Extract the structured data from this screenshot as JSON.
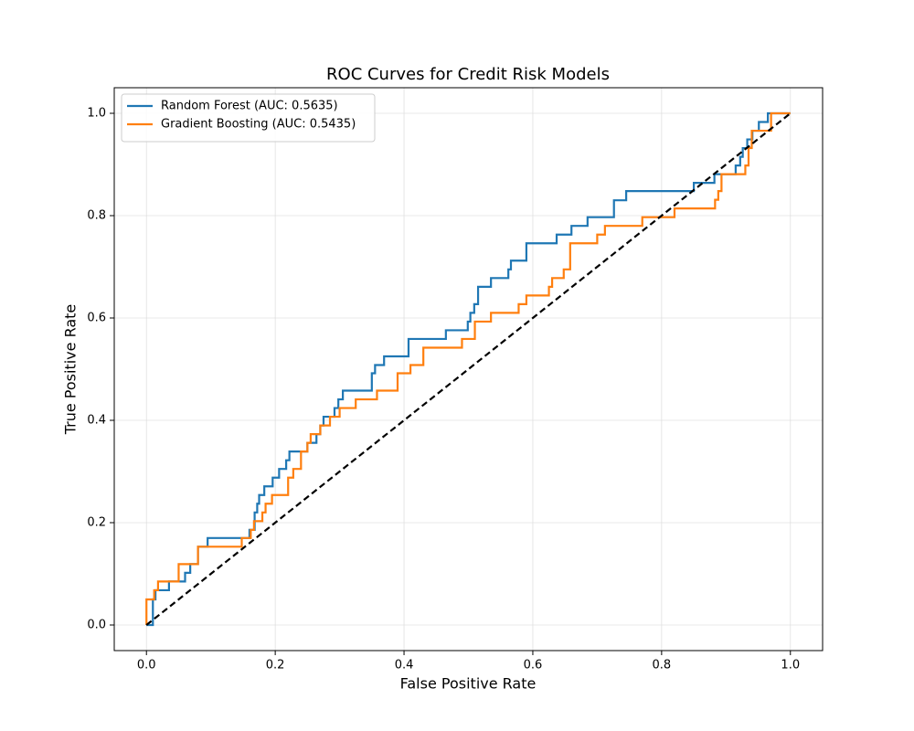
{
  "chart_data": {
    "type": "line",
    "title": "ROC Curves for Credit Risk Models",
    "x_label": "False Positive Rate",
    "y_label": "True Positive Rate",
    "xlim": [
      -0.05,
      1.05
    ],
    "ylim": [
      -0.05,
      1.05
    ],
    "xticks": [
      {
        "value": 0,
        "label": "0.0"
      },
      0.2,
      0.4,
      0.6,
      0.8,
      {
        "value": 1,
        "label": "1.0"
      }
    ],
    "yticks": [
      {
        "value": 0,
        "label": "0.0"
      },
      0.2,
      0.4,
      0.6,
      0.8,
      {
        "value": 1,
        "label": "1.0"
      }
    ],
    "grid": true,
    "legend": "upper left",
    "series": [
      {
        "name": "Random Forest (AUC: 0.5635)",
        "color": "#1f77b4",
        "x": [
          0,
          0.01,
          0.01,
          0.014,
          0.014,
          0.035,
          0.035,
          0.06,
          0.06,
          0.068,
          0.068,
          0.08,
          0.08,
          0.095,
          0.095,
          0.16,
          0.16,
          0.168,
          0.168,
          0.172,
          0.172,
          0.175,
          0.175,
          0.183,
          0.183,
          0.196,
          0.196,
          0.206,
          0.206,
          0.217,
          0.217,
          0.222,
          0.222,
          0.25,
          0.25,
          0.264,
          0.264,
          0.27,
          0.27,
          0.275,
          0.275,
          0.292,
          0.292,
          0.298,
          0.298,
          0.305,
          0.305,
          0.35,
          0.35,
          0.355,
          0.355,
          0.369,
          0.369,
          0.407,
          0.407,
          0.465,
          0.465,
          0.499,
          0.499,
          0.503,
          0.503,
          0.509,
          0.509,
          0.515,
          0.515,
          0.535,
          0.535,
          0.562,
          0.562,
          0.566,
          0.566,
          0.59,
          0.59,
          0.637,
          0.637,
          0.66,
          0.66,
          0.685,
          0.685,
          0.726,
          0.726,
          0.745,
          0.745,
          0.85,
          0.85,
          0.882,
          0.882,
          0.915,
          0.915,
          0.922,
          0.922,
          0.926,
          0.926,
          0.933,
          0.933,
          0.941,
          0.941,
          0.951,
          0.951,
          0.965,
          0.965,
          1
        ],
        "values": [
          0,
          0,
          0.05,
          0.05,
          0.068,
          0.068,
          0.085,
          0.085,
          0.102,
          0.102,
          0.119,
          0.119,
          0.153,
          0.153,
          0.17,
          0.17,
          0.186,
          0.186,
          0.22,
          0.22,
          0.237,
          0.237,
          0.254,
          0.254,
          0.271,
          0.271,
          0.288,
          0.288,
          0.305,
          0.305,
          0.322,
          0.322,
          0.339,
          0.339,
          0.356,
          0.356,
          0.373,
          0.373,
          0.39,
          0.39,
          0.407,
          0.407,
          0.424,
          0.424,
          0.441,
          0.441,
          0.458,
          0.458,
          0.492,
          0.492,
          0.508,
          0.508,
          0.525,
          0.525,
          0.559,
          0.559,
          0.576,
          0.576,
          0.593,
          0.593,
          0.61,
          0.61,
          0.627,
          0.627,
          0.661,
          0.661,
          0.678,
          0.678,
          0.695,
          0.695,
          0.712,
          0.712,
          0.746,
          0.746,
          0.763,
          0.763,
          0.78,
          0.78,
          0.797,
          0.797,
          0.83,
          0.83,
          0.848,
          0.848,
          0.864,
          0.864,
          0.881,
          0.881,
          0.898,
          0.898,
          0.915,
          0.915,
          0.932,
          0.932,
          0.949,
          0.949,
          0.966,
          0.966,
          0.983,
          0.983,
          1,
          1
        ]
      },
      {
        "name": "Gradient Boosting (AUC: 0.5435)",
        "color": "#ff7f0e",
        "x": [
          0,
          0,
          0.012,
          0.012,
          0.018,
          0.018,
          0.05,
          0.05,
          0.08,
          0.08,
          0.148,
          0.148,
          0.162,
          0.162,
          0.167,
          0.167,
          0.18,
          0.18,
          0.185,
          0.185,
          0.195,
          0.195,
          0.22,
          0.22,
          0.228,
          0.228,
          0.24,
          0.24,
          0.25,
          0.25,
          0.255,
          0.255,
          0.27,
          0.27,
          0.285,
          0.285,
          0.3,
          0.3,
          0.325,
          0.325,
          0.358,
          0.358,
          0.39,
          0.39,
          0.41,
          0.41,
          0.43,
          0.43,
          0.49,
          0.49,
          0.51,
          0.51,
          0.535,
          0.535,
          0.578,
          0.578,
          0.59,
          0.59,
          0.625,
          0.625,
          0.63,
          0.63,
          0.648,
          0.648,
          0.658,
          0.658,
          0.7,
          0.7,
          0.712,
          0.712,
          0.77,
          0.77,
          0.82,
          0.82,
          0.883,
          0.883,
          0.888,
          0.888,
          0.893,
          0.893,
          0.93,
          0.93,
          0.935,
          0.935,
          0.94,
          0.94,
          0.97,
          0.97,
          1
        ],
        "values": [
          0,
          0.05,
          0.05,
          0.068,
          0.068,
          0.085,
          0.085,
          0.119,
          0.119,
          0.153,
          0.153,
          0.17,
          0.17,
          0.186,
          0.186,
          0.203,
          0.203,
          0.22,
          0.22,
          0.237,
          0.237,
          0.254,
          0.254,
          0.288,
          0.288,
          0.305,
          0.305,
          0.339,
          0.339,
          0.356,
          0.356,
          0.373,
          0.373,
          0.39,
          0.39,
          0.407,
          0.407,
          0.424,
          0.424,
          0.441,
          0.441,
          0.458,
          0.458,
          0.492,
          0.492,
          0.508,
          0.508,
          0.542,
          0.542,
          0.559,
          0.559,
          0.593,
          0.593,
          0.61,
          0.61,
          0.627,
          0.627,
          0.644,
          0.644,
          0.661,
          0.661,
          0.678,
          0.678,
          0.695,
          0.695,
          0.746,
          0.746,
          0.763,
          0.763,
          0.78,
          0.78,
          0.797,
          0.797,
          0.814,
          0.814,
          0.831,
          0.831,
          0.848,
          0.848,
          0.881,
          0.881,
          0.898,
          0.898,
          0.932,
          0.932,
          0.966,
          0.966,
          1,
          1
        ]
      }
    ],
    "reference_line": {
      "x": [
        0,
        1
      ],
      "values": [
        0,
        1
      ],
      "color": "#000000",
      "style": "dashed"
    }
  }
}
